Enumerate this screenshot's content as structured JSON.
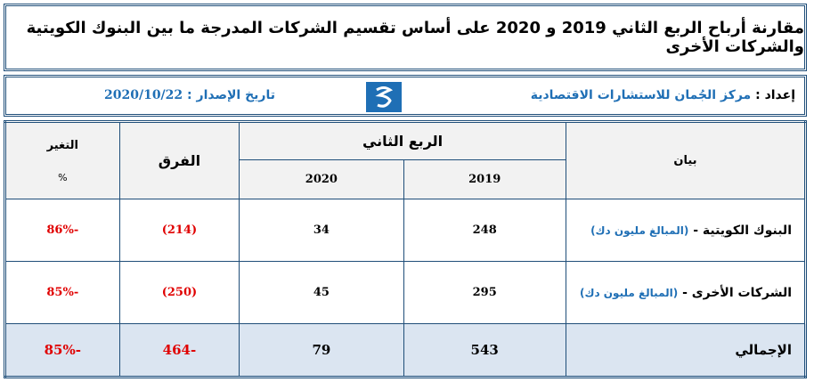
{
  "title": "مقارنة أرباح الربع الثاني 2019 و 2020 على أساس تقسيم الشركات المدرجة ما بين البنوك الكويتية والشركات الأخرى",
  "header": {
    "prepared_label": "إعداد :",
    "prepared_by": "مركز الجُمان للاستشارات الاقتصادية",
    "date_label": "تاريخ الإصدار :",
    "date": "2020/10/22"
  },
  "table": {
    "columns": {
      "item": "بيان",
      "quarter": "الربع الثاني",
      "year1": "2019",
      "year2": "2020",
      "diff": "الفرق",
      "change": "التغير",
      "change_unit": "%"
    },
    "rows": [
      [
        "البنوك الكويتية -",
        "(المبالغ مليون دك)",
        "248",
        "34",
        "(214)",
        "-86%"
      ],
      [
        "الشركات الأخرى -",
        "(المبالغ مليون دك)",
        "295",
        "45",
        "(250)",
        "-85%"
      ]
    ],
    "total": [
      "الإجمالي",
      "543",
      "79",
      "-464",
      "-85%"
    ]
  }
}
